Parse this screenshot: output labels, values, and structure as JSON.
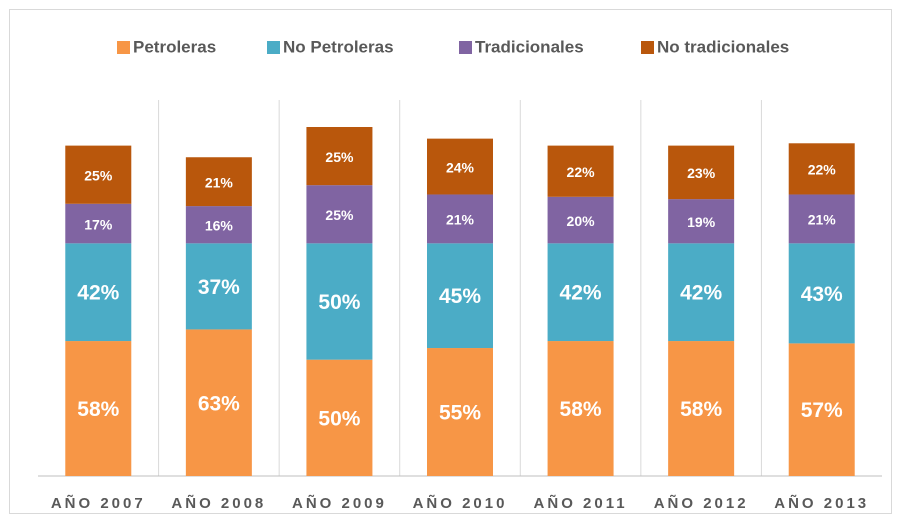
{
  "chart_data": {
    "type": "stacked_bar",
    "categories": [
      "AÑO 2007",
      "AÑO 2008",
      "AÑO 2009",
      "AÑO 2010",
      "AÑO 2011",
      "AÑO 2012",
      "AÑO 2013"
    ],
    "series": [
      {
        "name": "Petroleras",
        "color": "#f79646",
        "values": [
          58,
          63,
          50,
          55,
          58,
          58,
          57
        ],
        "value_labels": [
          "58%",
          "63%",
          "50%",
          "55%",
          "58%",
          "58%",
          "57%"
        ]
      },
      {
        "name": "No Petroleras",
        "color": "#4bacc6",
        "values": [
          42,
          37,
          50,
          45,
          42,
          42,
          43
        ],
        "value_labels": [
          "42%",
          "37%",
          "50%",
          "45%",
          "42%",
          "42%",
          "43%"
        ]
      },
      {
        "name": "Tradicionales",
        "color": "#8064a2",
        "values": [
          17,
          16,
          25,
          21,
          20,
          19,
          21
        ],
        "value_labels": [
          "17%",
          "16%",
          "25%",
          "21%",
          "20%",
          "19%",
          "21%"
        ]
      },
      {
        "name": "No tradicionales",
        "color": "#b9570c",
        "values": [
          25,
          21,
          25,
          24,
          22,
          23,
          22
        ],
        "value_labels": [
          "25%",
          "21%",
          "25%",
          "24%",
          "22%",
          "23%",
          "22%"
        ]
      }
    ],
    "legend": "top"
  }
}
